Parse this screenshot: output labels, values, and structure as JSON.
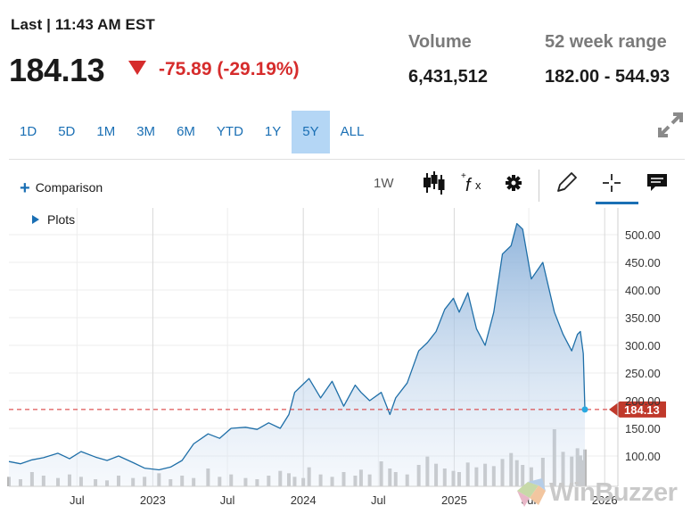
{
  "header": {
    "last_label": "Last | 11:43 AM EST",
    "price": "184.13",
    "change": "-75.89 (-29.19%)",
    "volume_label": "Volume",
    "volume_value": "6,431,512",
    "range_label": "52 week range",
    "range_value": "182.00 - 544.93"
  },
  "tabs": [
    {
      "label": "1D",
      "active": false
    },
    {
      "label": "5D",
      "active": false
    },
    {
      "label": "1M",
      "active": false
    },
    {
      "label": "3M",
      "active": false
    },
    {
      "label": "6M",
      "active": false
    },
    {
      "label": "YTD",
      "active": false
    },
    {
      "label": "1Y",
      "active": false
    },
    {
      "label": "5Y",
      "active": true
    },
    {
      "label": "ALL",
      "active": false
    }
  ],
  "toolbar": {
    "comparison_label": "Comparison",
    "plots_label": "Plots",
    "interval_label": "1W"
  },
  "watermark": {
    "text": "WinBuzzer"
  },
  "colors": {
    "accent": "#1a6fb4",
    "line": "#1f6fa8",
    "negative": "#d62c2c",
    "tab_active": "#b4d6f5",
    "volume": "#b8b8b8"
  },
  "chart_data": {
    "type": "area",
    "title": "",
    "xlabel": "",
    "ylabel": "",
    "x_tick_labels": [
      "Jul",
      "2023",
      "Jul",
      "2024",
      "Jul",
      "2025",
      "Jul",
      "2026"
    ],
    "y_tick_values": [
      100,
      150,
      200,
      250,
      300,
      350,
      400,
      450,
      500
    ],
    "y_tick_labels": [
      "100.00",
      "150.00",
      "200.00",
      "250.00",
      "300.00",
      "350.00",
      "400.00",
      "450.00",
      "500.00"
    ],
    "ylim": [
      80,
      530
    ],
    "x_range": [
      "2022-01-17",
      "2026-02-02"
    ],
    "grid": true,
    "last_price": {
      "value": 184.13,
      "label": "184.13"
    },
    "series": [
      {
        "x": [
          "2022-01-17",
          "2022-02-14",
          "2022-03-14",
          "2022-04-11",
          "2022-05-16",
          "2022-06-13",
          "2022-07-11",
          "2022-08-15",
          "2022-09-12",
          "2022-10-10",
          "2022-11-14",
          "2022-12-12",
          "2023-01-16",
          "2023-02-13",
          "2023-03-13",
          "2023-04-10",
          "2023-05-15",
          "2023-06-12",
          "2023-07-10",
          "2023-08-14",
          "2023-09-11",
          "2023-10-09",
          "2023-11-06",
          "2023-11-27",
          "2023-12-11",
          "2024-01-01",
          "2024-01-15",
          "2024-02-12",
          "2024-03-11",
          "2024-04-08",
          "2024-05-06",
          "2024-05-20",
          "2024-06-10",
          "2024-07-08",
          "2024-07-29",
          "2024-08-12",
          "2024-09-09",
          "2024-10-07",
          "2024-10-28",
          "2024-11-18",
          "2024-12-09",
          "2024-12-30",
          "2025-01-13",
          "2025-02-03",
          "2025-02-24",
          "2025-03-17",
          "2025-04-07",
          "2025-04-28",
          "2025-05-19",
          "2025-06-02",
          "2025-06-16",
          "2025-07-07",
          "2025-08-04",
          "2025-09-01",
          "2025-09-22",
          "2025-10-13",
          "2025-10-27",
          "2025-11-03",
          "2025-11-10",
          "2025-11-14"
        ],
        "values": [
          90,
          86,
          93,
          97,
          105,
          95,
          108,
          98,
          92,
          100,
          88,
          78,
          75,
          80,
          92,
          122,
          140,
          132,
          150,
          152,
          148,
          160,
          150,
          175,
          215,
          230,
          240,
          205,
          235,
          190,
          228,
          215,
          200,
          215,
          175,
          205,
          232,
          290,
          305,
          325,
          365,
          385,
          360,
          395,
          330,
          300,
          360,
          465,
          480,
          520,
          510,
          420,
          450,
          360,
          320,
          290,
          320,
          325,
          285,
          184.13
        ]
      }
    ],
    "volume_values_millions": [
      0.8,
      0.6,
      1.2,
      0.9,
      0.7,
      1.0,
      0.8,
      0.6,
      0.5,
      0.9,
      0.7,
      0.8,
      1.1,
      0.6,
      0.9,
      0.7,
      1.5,
      0.8,
      1.0,
      0.7,
      0.6,
      0.9,
      1.3,
      1.1,
      0.8,
      0.7,
      1.6,
      1.0,
      0.8,
      1.2,
      0.9,
      1.4,
      1.0,
      2.1,
      1.5,
      1.2,
      1.0,
      1.8,
      2.5,
      1.9,
      1.5,
      1.3,
      1.2,
      2.0,
      1.6,
      1.9,
      1.7,
      2.3,
      2.8,
      2.2,
      1.8,
      1.6,
      2.4,
      4.8,
      2.9,
      2.5,
      3.2,
      2.6,
      2.2,
      3.1
    ]
  }
}
